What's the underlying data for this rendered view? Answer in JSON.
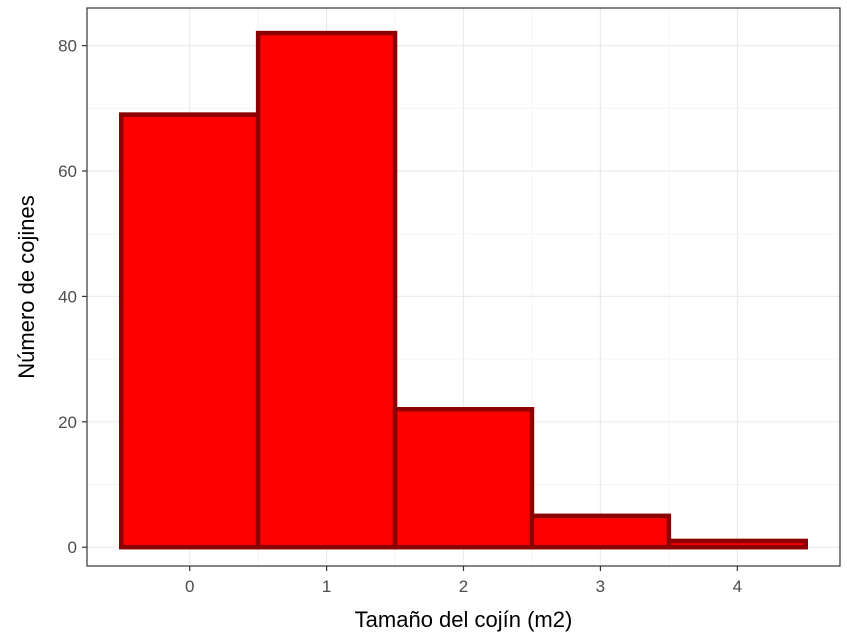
{
  "chart_data": {
    "type": "bar",
    "categories": [
      "0",
      "1",
      "2",
      "3",
      "4"
    ],
    "x": [
      0,
      1,
      2,
      3,
      4
    ],
    "values": [
      69,
      82,
      22,
      5,
      1
    ],
    "xlabel": "Tamaño del cojín (m2)",
    "ylabel": "Número de cojines",
    "xlim": [
      -0.75,
      4.75
    ],
    "ylim": [
      -3,
      86
    ],
    "yticks": [
      0,
      20,
      40,
      60,
      80
    ],
    "xticks": [
      0,
      1,
      2,
      3,
      4
    ],
    "grid": true,
    "bar_fill": "#ff0000",
    "bar_outline": "#8b0000",
    "panel_border": "#333333",
    "grid_major": "#ebebeb",
    "grid_minor": "#f5f5f5"
  }
}
